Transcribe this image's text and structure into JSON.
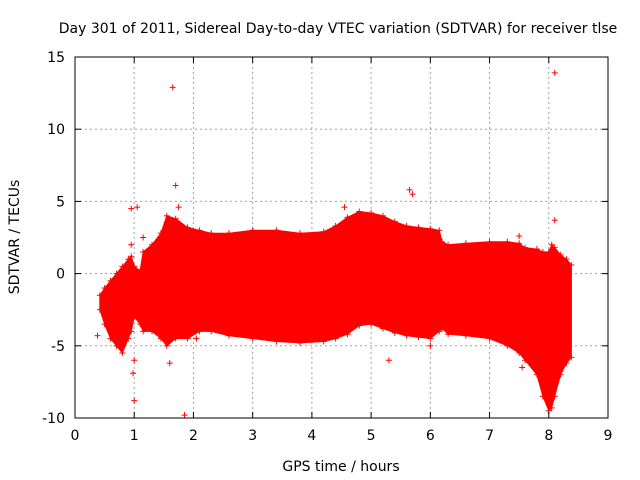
{
  "chart_data": {
    "type": "scatter",
    "title": "Day 301 of 2011, Sidereal Day-to-day VTEC variation (SDTVAR) for receiver tlse",
    "xlabel": "GPS time / hours",
    "ylabel": "SDTVAR / TECUs",
    "xlim": [
      0,
      9
    ],
    "ylim": [
      -10,
      15
    ],
    "xticks": [
      0,
      1,
      2,
      3,
      4,
      5,
      6,
      7,
      8,
      9
    ],
    "yticks": [
      -10,
      -5,
      0,
      5,
      10,
      15
    ],
    "xtick_labels": [
      "0",
      "1",
      "2",
      "3",
      "4",
      "5",
      "6",
      "7",
      "8",
      "9"
    ],
    "ytick_labels": [
      "-10",
      "-5",
      "0",
      "5",
      "10",
      "15"
    ],
    "grid": true,
    "marker": "+",
    "color": "#ff0000",
    "band_description": "dense error-bar band, min/max envelope per time",
    "band": {
      "x": [
        0.42,
        0.5,
        0.6,
        0.7,
        0.8,
        0.9,
        0.95,
        1.0,
        1.1,
        1.15,
        1.3,
        1.45,
        1.55,
        1.7,
        1.9,
        2.1,
        2.3,
        2.6,
        3.0,
        3.4,
        3.8,
        4.2,
        4.4,
        4.6,
        4.8,
        5.0,
        5.2,
        5.4,
        5.6,
        5.8,
        6.0,
        6.15,
        6.2,
        6.3,
        6.6,
        7.0,
        7.3,
        7.5,
        7.6,
        7.8,
        7.9,
        8.0,
        8.05,
        8.1,
        8.2,
        8.3,
        8.38
      ],
      "max": [
        -1.5,
        -1.0,
        -0.5,
        0.0,
        0.5,
        1.0,
        1.2,
        0.5,
        0.2,
        1.5,
        2.0,
        2.8,
        4.0,
        3.8,
        3.2,
        3.0,
        2.8,
        2.8,
        3.0,
        3.0,
        2.8,
        2.9,
        3.3,
        3.9,
        4.3,
        4.2,
        4.0,
        3.6,
        3.3,
        3.2,
        3.1,
        3.0,
        2.2,
        2.0,
        2.1,
        2.2,
        2.2,
        2.1,
        1.8,
        1.7,
        1.5,
        1.5,
        2.0,
        1.8,
        1.3,
        1.0,
        0.6
      ],
      "min": [
        -2.5,
        -3.5,
        -4.5,
        -5.0,
        -5.5,
        -4.5,
        -4.0,
        -3.0,
        -3.5,
        -4.0,
        -4.0,
        -4.5,
        -5.0,
        -4.5,
        -4.5,
        -4.0,
        -4.0,
        -4.3,
        -4.5,
        -4.7,
        -4.8,
        -4.7,
        -4.5,
        -4.2,
        -3.6,
        -3.5,
        -3.8,
        -4.1,
        -4.3,
        -4.4,
        -4.5,
        -4.0,
        -3.8,
        -4.2,
        -4.3,
        -4.5,
        -5.0,
        -5.5,
        -6.0,
        -7.0,
        -8.5,
        -9.5,
        -9.3,
        -8.5,
        -7.0,
        -6.2,
        -5.8
      ]
    },
    "outliers": {
      "x": [
        1.65,
        8.1,
        1.0,
        0.95,
        1.7,
        1.85,
        1.75,
        1.0,
        5.65,
        5.7,
        4.55,
        0.38,
        1.05,
        0.95,
        1.6,
        2.05,
        7.5,
        6.0,
        5.3,
        7.55,
        8.1,
        1.15,
        0.98
      ],
      "y": [
        12.9,
        13.9,
        -8.8,
        4.5,
        6.1,
        -9.8,
        4.6,
        -6.0,
        5.8,
        5.5,
        4.6,
        -4.3,
        4.6,
        2.0,
        -6.2,
        -4.5,
        2.6,
        -5.0,
        -6.0,
        -6.5,
        3.7,
        2.5,
        -6.9
      ]
    }
  }
}
